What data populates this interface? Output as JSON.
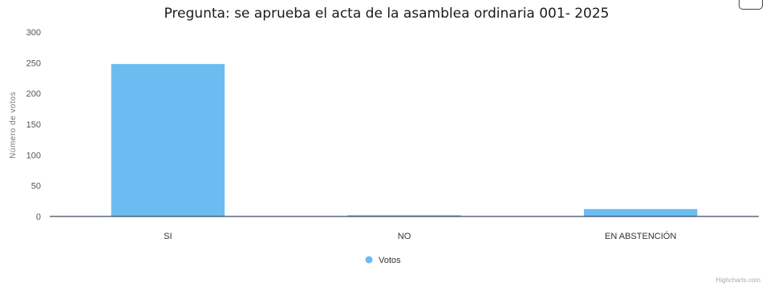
{
  "chart_data": {
    "type": "bar",
    "title": "Pregunta: se aprueba el acta de la asamblea ordinaria 001- 2025",
    "ylabel": "Número de votos",
    "xlabel": "",
    "categories": [
      "SI",
      "NO",
      "EN ABSTENCIÓN"
    ],
    "series": [
      {
        "name": "Votos",
        "values": [
          248,
          2,
          12
        ]
      }
    ],
    "ylim": [
      0,
      300
    ],
    "yticks": [
      "0",
      "50",
      "100",
      "150",
      "200",
      "250",
      "300"
    ],
    "grid": false,
    "legend": "bottom-center",
    "bar_color": "#6cbcf2",
    "credit": "Highcharts.com"
  }
}
